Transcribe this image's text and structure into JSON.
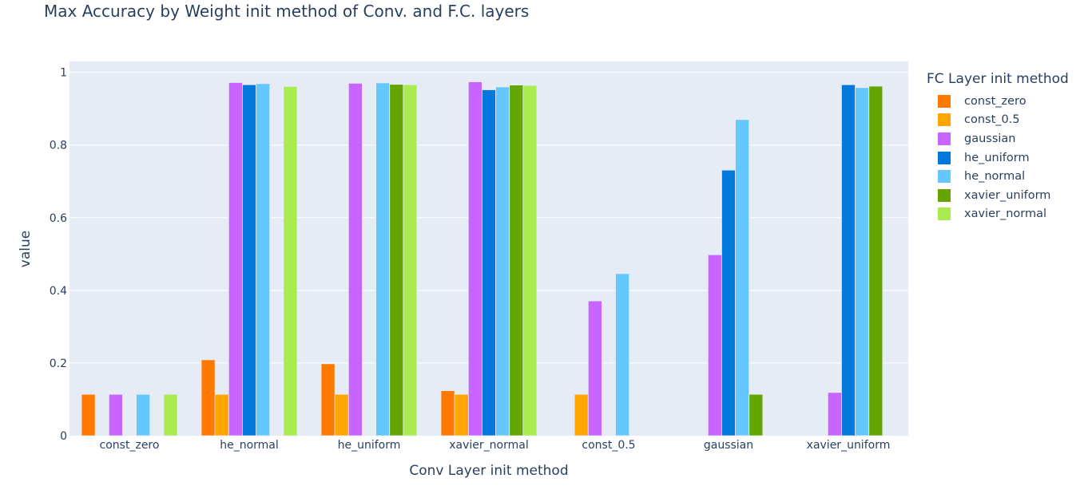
{
  "chart_data": {
    "type": "bar",
    "title": "Max Accuracy by Weight init method of Conv. and F.C. layers",
    "xlabel": "Conv Layer init method",
    "ylabel": "value",
    "ylim": [
      0,
      1.03
    ],
    "yticks": [
      "0",
      "0.2",
      "0.4",
      "0.6",
      "0.8",
      "1"
    ],
    "ytick_values": [
      0,
      0.2,
      0.4,
      0.6,
      0.8,
      1
    ],
    "grid": true,
    "legend_title": "FC Layer init method",
    "legend_position": "right",
    "categories": [
      "const_zero",
      "he_normal",
      "he_uniform",
      "xavier_normal",
      "const_0.5",
      "gaussian",
      "xavier_uniform"
    ],
    "series": [
      {
        "name": "const_zero",
        "color": "#FF7800",
        "values": [
          0.114,
          0.209,
          0.198,
          0.124,
          null,
          null,
          null
        ]
      },
      {
        "name": "const_0.5",
        "color": "#FFA500",
        "values": [
          null,
          0.114,
          0.114,
          0.114,
          0.114,
          null,
          null
        ]
      },
      {
        "name": "gaussian",
        "color": "#C864FF",
        "values": [
          0.114,
          0.972,
          0.97,
          0.974,
          0.371,
          0.498,
          0.119
        ]
      },
      {
        "name": "he_uniform",
        "color": "#0078DC",
        "values": [
          null,
          0.966,
          null,
          0.952,
          null,
          0.731,
          0.966
        ]
      },
      {
        "name": "he_normal",
        "color": "#64C8FF",
        "values": [
          0.114,
          0.969,
          0.971,
          0.96,
          0.446,
          0.87,
          0.958
        ]
      },
      {
        "name": "xavier_uniform",
        "color": "#64A500",
        "values": [
          null,
          null,
          0.967,
          0.965,
          null,
          0.114,
          0.962
        ]
      },
      {
        "name": "xavier_normal",
        "color": "#AAEB50",
        "values": [
          0.114,
          0.961,
          0.966,
          0.964,
          null,
          null,
          null
        ]
      }
    ]
  }
}
